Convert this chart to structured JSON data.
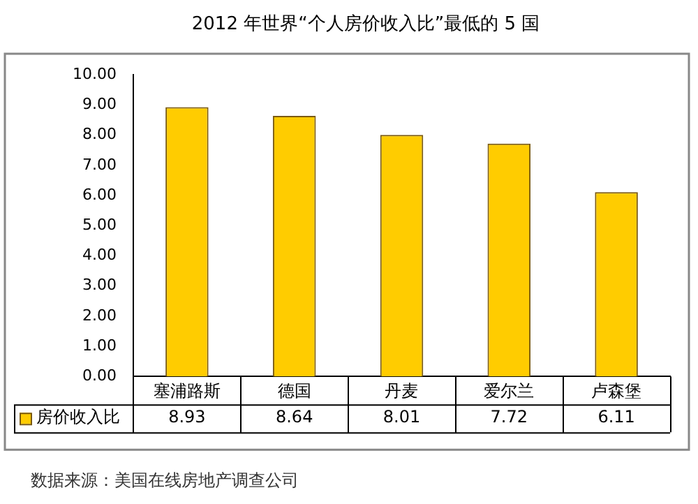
{
  "chart_data": {
    "type": "bar",
    "title": "2012 年世界“个人房价收入比”最低的 5 国",
    "categories": [
      "塞浦路斯",
      "德国",
      "丹麦",
      "爱尔兰",
      "卢森堡"
    ],
    "series": [
      {
        "name": "房价收入比",
        "color": "#ffcc00",
        "values": [
          8.93,
          8.64,
          8.01,
          7.72,
          6.11
        ]
      }
    ],
    "ylim": [
      0,
      10
    ],
    "yticks": [
      {
        "value": 0,
        "label": "0.00"
      },
      {
        "value": 1,
        "label": "1.00"
      },
      {
        "value": 2,
        "label": "2.00"
      },
      {
        "value": 3,
        "label": "3.00"
      },
      {
        "value": 4,
        "label": "4.00"
      },
      {
        "value": 5,
        "label": "5.00"
      },
      {
        "value": 6,
        "label": "6.00"
      },
      {
        "value": 7,
        "label": "7.00"
      },
      {
        "value": 8,
        "label": "8.00"
      },
      {
        "value": 9,
        "label": "9.00"
      },
      {
        "value": 10,
        "label": "10.00"
      }
    ],
    "grid": false,
    "legend": "bottom",
    "data_labels": true,
    "annotations": [
      "数据来源：美国在线房地产调查公司"
    ]
  }
}
